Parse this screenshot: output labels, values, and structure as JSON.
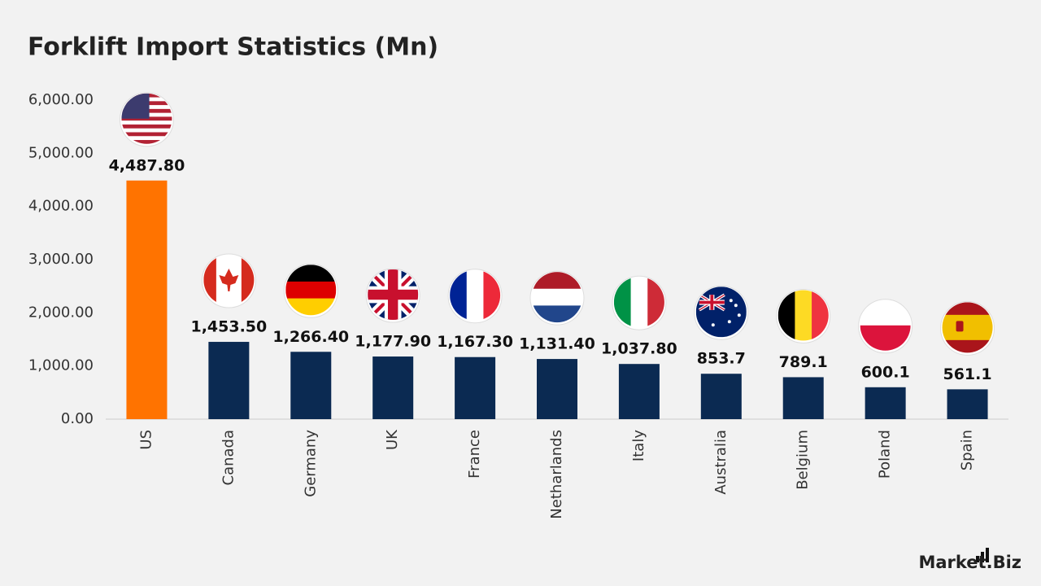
{
  "chart_data": {
    "type": "bar",
    "title": "Forklift Import Statistics (Mn)",
    "categories": [
      "US",
      "Canada",
      "Germany",
      "UK",
      "France",
      "Netharlands",
      "Italy",
      "Australia",
      "Belgium",
      "Poland",
      "Spain"
    ],
    "values": [
      4487.8,
      1453.5,
      1266.4,
      1177.9,
      1167.3,
      1131.4,
      1037.8,
      853.7,
      789.1,
      600.1,
      561.1
    ],
    "value_labels": [
      "4,487.80",
      "1,453.50",
      "1,266.40",
      "1,177.90",
      "1,167.30",
      "1,131.40",
      "1,037.80",
      "853.7",
      "789.1",
      "600.1",
      "561.1"
    ],
    "colors": [
      "#ff7300",
      "#0b2a52",
      "#0b2a52",
      "#0b2a52",
      "#0b2a52",
      "#0b2a52",
      "#0b2a52",
      "#0b2a52",
      "#0b2a52",
      "#0b2a52",
      "#0b2a52"
    ],
    "ylim": [
      0,
      6000
    ],
    "yticks": [
      {
        "value": 0,
        "label": "0.00"
      },
      {
        "value": 1000,
        "label": "1,000.00"
      },
      {
        "value": 2000,
        "label": "2,000.00"
      },
      {
        "value": 3000,
        "label": "3,000.00"
      },
      {
        "value": 4000,
        "label": "4,000.00"
      },
      {
        "value": 5000,
        "label": "5,000.00"
      },
      {
        "value": 6000,
        "label": "6,000.00"
      }
    ],
    "grid": false
  },
  "logo": "Market.Biz"
}
